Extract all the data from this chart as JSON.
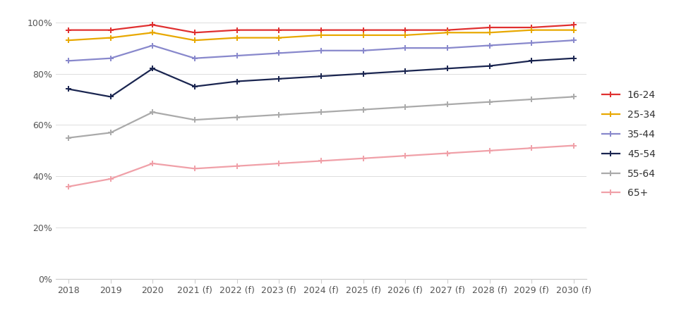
{
  "x_labels": [
    "2018",
    "2019",
    "2020",
    "2021 (f)",
    "2022 (f)",
    "2023 (f)",
    "2024 (f)",
    "2025 (f)",
    "2026 (f)",
    "2027 (f)",
    "2028 (f)",
    "2029 (f)",
    "2030 (f)"
  ],
  "series": {
    "16-24": [
      0.97,
      0.97,
      0.99,
      0.96,
      0.97,
      0.97,
      0.97,
      0.97,
      0.97,
      0.97,
      0.98,
      0.98,
      0.99
    ],
    "25-34": [
      0.93,
      0.94,
      0.96,
      0.93,
      0.94,
      0.94,
      0.95,
      0.95,
      0.95,
      0.96,
      0.96,
      0.97,
      0.97
    ],
    "35-44": [
      0.85,
      0.86,
      0.91,
      0.86,
      0.87,
      0.88,
      0.89,
      0.89,
      0.9,
      0.9,
      0.91,
      0.92,
      0.93
    ],
    "45-54": [
      0.74,
      0.71,
      0.82,
      0.75,
      0.77,
      0.78,
      0.79,
      0.8,
      0.81,
      0.82,
      0.83,
      0.85,
      0.86
    ],
    "55-64": [
      0.55,
      0.57,
      0.65,
      0.62,
      0.63,
      0.64,
      0.65,
      0.66,
      0.67,
      0.68,
      0.69,
      0.7,
      0.71
    ],
    "65+": [
      0.36,
      0.39,
      0.45,
      0.43,
      0.44,
      0.45,
      0.46,
      0.47,
      0.48,
      0.49,
      0.5,
      0.51,
      0.52
    ]
  },
  "colors": {
    "16-24": "#e03030",
    "25-34": "#e8a800",
    "35-44": "#8888cc",
    "45-54": "#1a2550",
    "55-64": "#aaaaaa",
    "65+": "#f0a0a8"
  },
  "marker": "+",
  "linewidth": 1.6,
  "markersize": 6,
  "markeredgewidth": 1.4,
  "ylim": [
    0,
    1.05
  ],
  "yticks": [
    0.0,
    0.2,
    0.4,
    0.6,
    0.8,
    1.0
  ],
  "ytick_labels": [
    "0%",
    "20%",
    "40%",
    "60%",
    "80%",
    "100%"
  ],
  "legend_order": [
    "16-24",
    "25-34",
    "35-44",
    "45-54",
    "55-64",
    "65+"
  ],
  "legend_text_color": "#333333",
  "tick_label_color": "#555555",
  "tick_fontsize": 9,
  "legend_fontsize": 10,
  "background_color": "#ffffff",
  "grid_color": "#dddddd",
  "spine_color": "#cccccc"
}
